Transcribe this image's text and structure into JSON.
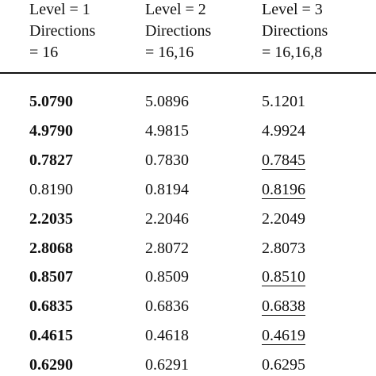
{
  "table": {
    "header": [
      [
        "Level = 1",
        "Directions",
        "= 16"
      ],
      [
        "Level = 2",
        "Directions",
        "= 16,16"
      ],
      [
        "Level = 3",
        "Directions",
        "= 16,16,8"
      ]
    ],
    "rows": [
      [
        "5.0790",
        "5.0896",
        "5.1201"
      ],
      [
        "4.9790",
        "4.9815",
        "4.9924"
      ],
      [
        "0.7827",
        "0.7830",
        "0.7845"
      ],
      [
        "0.8190",
        "0.8194",
        "0.8196"
      ],
      [
        "2.2035",
        "2.2046",
        "2.2049"
      ],
      [
        "2.8068",
        "2.8072",
        "2.8073"
      ],
      [
        "0.8507",
        "0.8509",
        "0.8510"
      ],
      [
        "0.6835",
        "0.6836",
        "0.6838"
      ],
      [
        "0.4615",
        "0.4618",
        "0.4619"
      ],
      [
        "0.6290",
        "0.6291",
        "0.6295"
      ]
    ],
    "bold_cells": [
      [
        0,
        0
      ],
      [
        1,
        0
      ],
      [
        2,
        0
      ],
      [
        4,
        0
      ],
      [
        5,
        0
      ],
      [
        6,
        0
      ],
      [
        7,
        0
      ],
      [
        8,
        0
      ],
      [
        9,
        0
      ]
    ],
    "underlined_cells": [
      [
        2,
        2
      ],
      [
        3,
        2
      ],
      [
        6,
        2
      ],
      [
        7,
        2
      ],
      [
        8,
        2
      ]
    ]
  }
}
